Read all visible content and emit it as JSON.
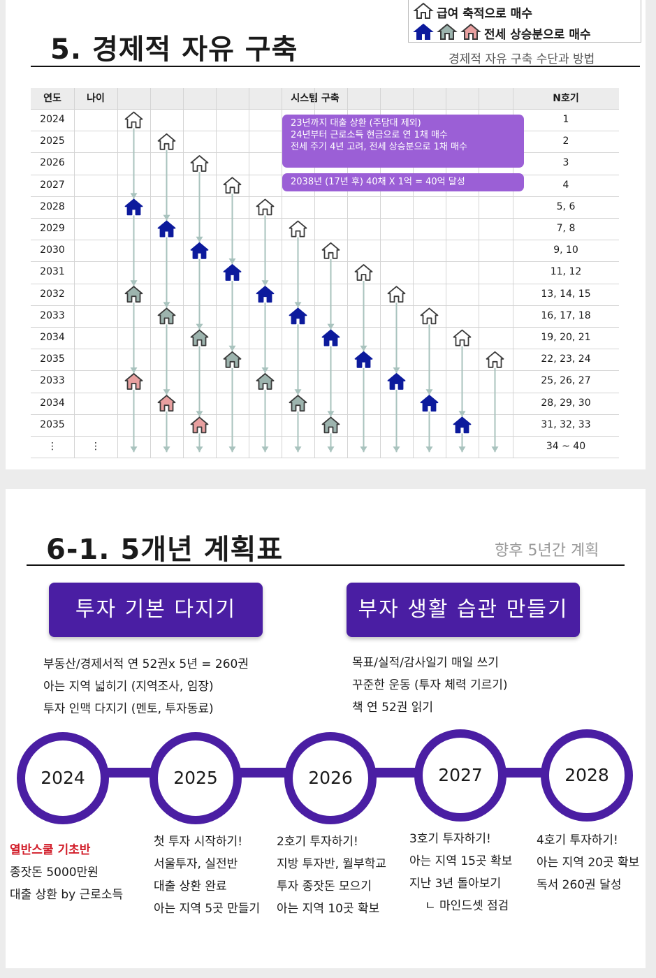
{
  "slide1": {
    "title": "5. 경제적 자유 구축",
    "subtitle": "경제적 자유 구축 수단과 방법",
    "legend": {
      "salary": "급여 축적으로 매수",
      "jeonse": "전세 상승분으로 매수"
    },
    "table": {
      "headers": {
        "year": "연도",
        "age": "나이",
        "system": "시스템 구축",
        "n": "N호기"
      },
      "years": [
        "2024",
        "2025",
        "2026",
        "2027",
        "2028",
        "2029",
        "2030",
        "2031",
        "2032",
        "2033",
        "2034",
        "2035",
        "2033",
        "2034",
        "2035",
        "⋮"
      ],
      "age_more": "⋮",
      "n_values": [
        "1",
        "2",
        "3",
        "4",
        "5, 6",
        "7, 8",
        "9, 10",
        "11, 12",
        "13, 14, 15",
        "16, 17, 18",
        "19, 20, 21",
        "22, 23, 24",
        "25, 26, 27",
        "28, 29, 30",
        "31, 32, 33",
        "34 ~ 40"
      ],
      "callout1": [
        "23년까지 대출 상환 (주담대 제외)",
        "24년부터 근로소득 현금으로 연 1채 매수",
        "전세 주기 4년 고려, 전세 상승분으로 1채 매수"
      ],
      "callout2": "2038년 (17년  후) 40채 X 1억 = 40억 달성"
    },
    "colors": {
      "house_outline": "#3a3a3a",
      "house_navy": "#0c1a9c",
      "house_gray": "#9db4ae",
      "house_pink": "#e8a0a0",
      "arrow": "#a9c3be",
      "callout": "#9b5fd6"
    }
  },
  "slide2": {
    "title": "6-1. 5개년 계획표",
    "subtitle": "향후 5년간 계획",
    "pill_left": "투자 기본 다지기",
    "pill_right": "부자 생활 습관 만들기",
    "left_items": [
      "부동산/경제서적 연 52권x 5년 = 260권",
      "아는 지역 넓히기 (지역조사, 임장)",
      "투자 인맥 다지기 (멘토, 투자동료)"
    ],
    "right_items": [
      "목표/실적/감사일기 매일 쓰기",
      "꾸준한 운동 (투자 체력 기르기)",
      "책 연 52권 읽기"
    ],
    "timeline": [
      {
        "year": "2024",
        "items": [
          "열반스쿨 기초반",
          "종잣돈 5000만원",
          "대출 상환 by 근로소득"
        ]
      },
      {
        "year": "2025",
        "items": [
          "첫 투자 시작하기!",
          "서울투자, 실전반",
          "대출 상환 완료",
          "아는 지역 5곳 만들기"
        ]
      },
      {
        "year": "2026",
        "items": [
          "2호기 투자하기!",
          "지방 투자반, 월부학교",
          "투자 종잣돈 모으기",
          "아는 지역 10곳 확보"
        ]
      },
      {
        "year": "2027",
        "items": [
          "3호기 투자하기!",
          "아는 지역 15곳 확보",
          "지난 3년 돌아보기",
          "ㄴ 마인드셋 점검"
        ]
      },
      {
        "year": "2028",
        "items": [
          "4호기 투자하기!",
          "아는 지역 20곳 확보",
          "독서 260권 달성"
        ]
      }
    ],
    "colors": {
      "purple": "#4a1ea3",
      "highlight_red": "#d21f2b"
    }
  }
}
